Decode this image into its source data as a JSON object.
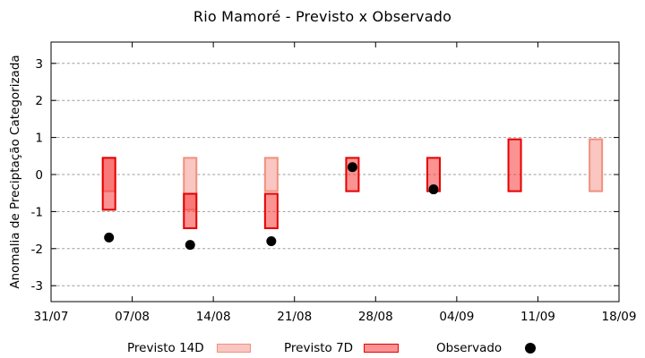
{
  "header": {
    "title": "Rio Mamoré - Previsto x Observado"
  },
  "chart_data": {
    "type": "bar",
    "subtype": "range-bars-with-scatter",
    "title": "Rio Mamoré - Previsto x Observado",
    "xlabel": "",
    "ylabel": "Anomalia de Preciptação Categorizada",
    "ylim": [
      -3.5,
      3.5
    ],
    "yticks": [
      -3,
      -2,
      -1,
      0,
      1,
      2,
      3
    ],
    "grid": "horizontal-dashed",
    "grid_color": "#9e9e9e",
    "axis_color": "#000000",
    "legend_position": "bottom-center",
    "xticks": [
      {
        "day": 0,
        "label": "31/07"
      },
      {
        "day": 7,
        "label": "07/08"
      },
      {
        "day": 14,
        "label": "14/08"
      },
      {
        "day": 21,
        "label": "21/08"
      },
      {
        "day": 28,
        "label": "28/08"
      },
      {
        "day": 35,
        "label": "04/09"
      },
      {
        "day": 42,
        "label": "11/09"
      },
      {
        "day": 49,
        "label": "18/09"
      }
    ],
    "x_unit": "days-after-31/07",
    "series": [
      {
        "name": "Previsto 14D",
        "type": "range-bar",
        "fill": "#f9c6c1",
        "fill_css": "#f9c6c1",
        "border": "#f0907e",
        "bars": [
          {
            "day": 5,
            "from": -0.45,
            "to": 0.45
          },
          {
            "day": 12,
            "from": -0.95,
            "to": 0.45
          },
          {
            "day": 19,
            "from": -0.45,
            "to": 0.45
          },
          {
            "day": 47,
            "from": -0.45,
            "to": 0.95
          }
        ]
      },
      {
        "name": "Previsto 7D",
        "type": "range-bar",
        "fill": "#fb9393",
        "fill_css": "rgba(248,59,59,0.55)",
        "border": "#e60000",
        "bars": [
          {
            "day": 5,
            "from": -0.95,
            "to": 0.45
          },
          {
            "day": 12,
            "from": -1.45,
            "to": -0.52
          },
          {
            "day": 19,
            "from": -1.45,
            "to": -0.52
          },
          {
            "day": 26,
            "from": -0.45,
            "to": 0.45
          },
          {
            "day": 33,
            "from": -0.45,
            "to": 0.45
          },
          {
            "day": 40,
            "from": -0.45,
            "to": 0.95
          }
        ]
      },
      {
        "name": "Observado",
        "type": "scatter",
        "color": "#000000",
        "points": [
          {
            "day": 5,
            "value": -1.7
          },
          {
            "day": 12,
            "value": -1.9
          },
          {
            "day": 19,
            "value": -1.8
          },
          {
            "day": 26,
            "value": 0.2
          },
          {
            "day": 33,
            "value": -0.4
          }
        ]
      }
    ]
  },
  "legend": {
    "items": [
      {
        "label": "Previsto 14D",
        "swatch": "light-pink-box",
        "fill": "#f9c6c1",
        "border": "#f0907e"
      },
      {
        "label": "Previsto 7D",
        "swatch": "red-box",
        "fill": "#fb9393",
        "border": "#e60000"
      },
      {
        "label": "Observado",
        "swatch": "black-dot",
        "fill": "#000000"
      }
    ]
  }
}
